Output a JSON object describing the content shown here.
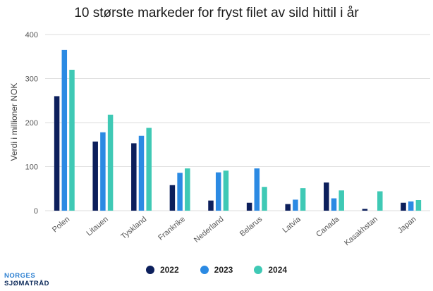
{
  "chart_data": {
    "type": "bar",
    "title": "10 største markeder for fryst filet av sild hittil i år",
    "xlabel": "",
    "ylabel": "Verdi i millioner NOK",
    "ylim": [
      0,
      400
    ],
    "yticks": [
      0,
      100,
      200,
      300,
      400
    ],
    "grid": true,
    "legend_position": "bottom",
    "categories": [
      "Polen",
      "Litauen",
      "Tyskland",
      "Frankrike",
      "Nederland",
      "Belarus",
      "Latvia",
      "Canada",
      "Kasakhstan",
      "Japan"
    ],
    "series": [
      {
        "name": "2022",
        "color": "#0c1f5c",
        "values": [
          260,
          157,
          153,
          58,
          23,
          18,
          15,
          64,
          4,
          18
        ]
      },
      {
        "name": "2023",
        "color": "#2b8ae3",
        "values": [
          365,
          178,
          170,
          86,
          87,
          96,
          25,
          28,
          0,
          21
        ]
      },
      {
        "name": "2024",
        "color": "#3fc9b5",
        "values": [
          320,
          218,
          188,
          96,
          91,
          54,
          51,
          46,
          44,
          24
        ]
      }
    ]
  },
  "branding": {
    "line1": "NORGES",
    "line2": "SJØMATRÅD"
  }
}
